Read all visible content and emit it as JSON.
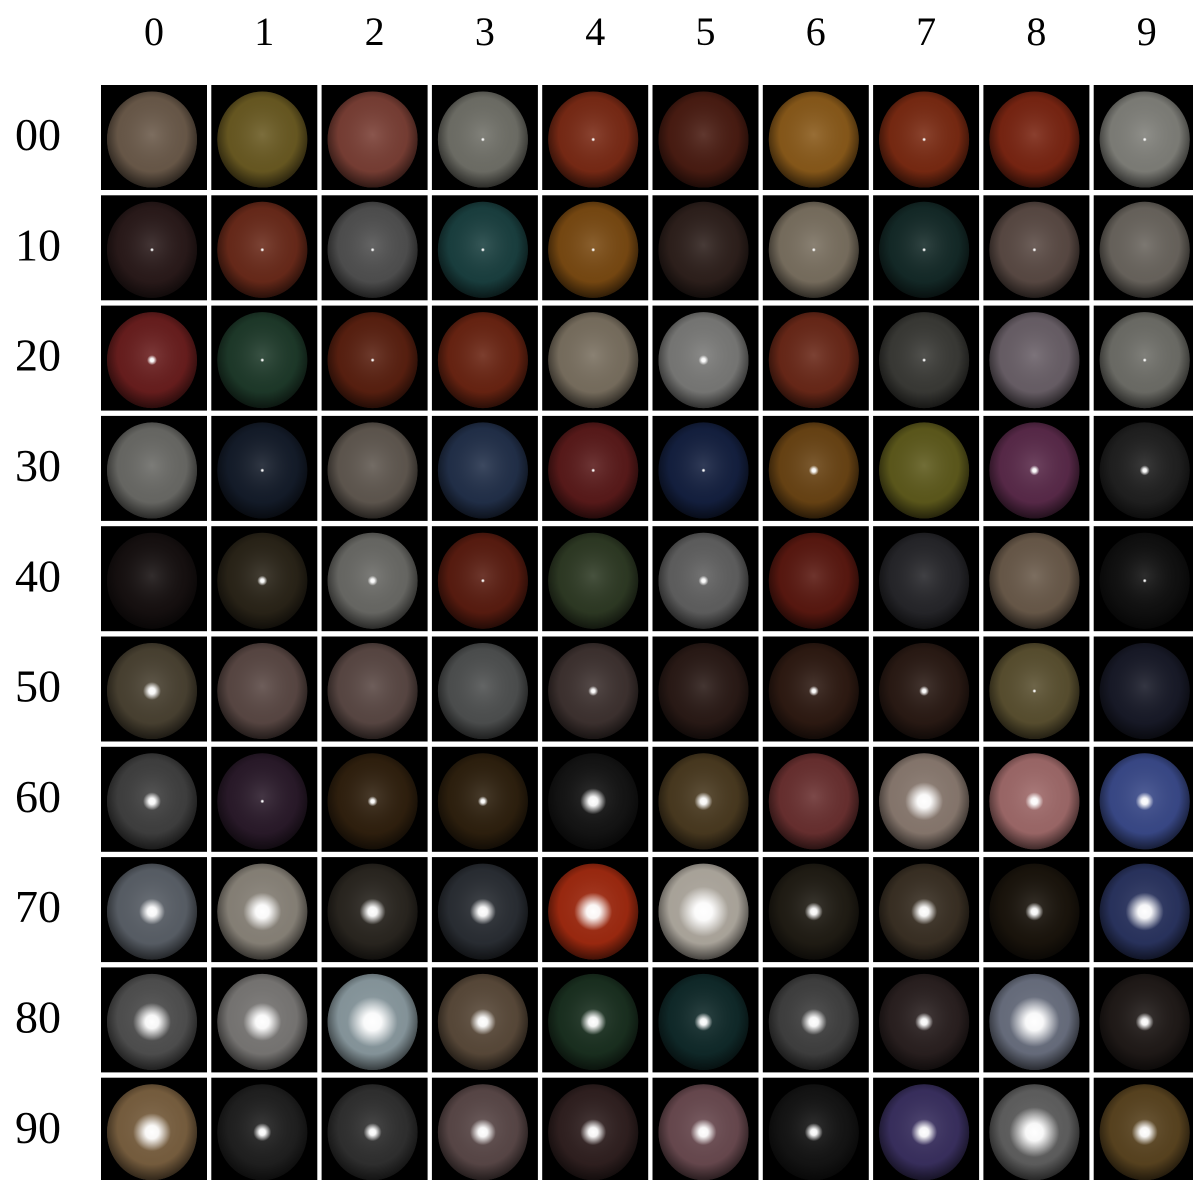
{
  "column_labels": [
    "0",
    "1",
    "2",
    "3",
    "4",
    "5",
    "6",
    "7",
    "8",
    "9"
  ],
  "row_labels": [
    "00",
    "10",
    "20",
    "30",
    "40",
    "50",
    "60",
    "70",
    "80",
    "90"
  ]
}
